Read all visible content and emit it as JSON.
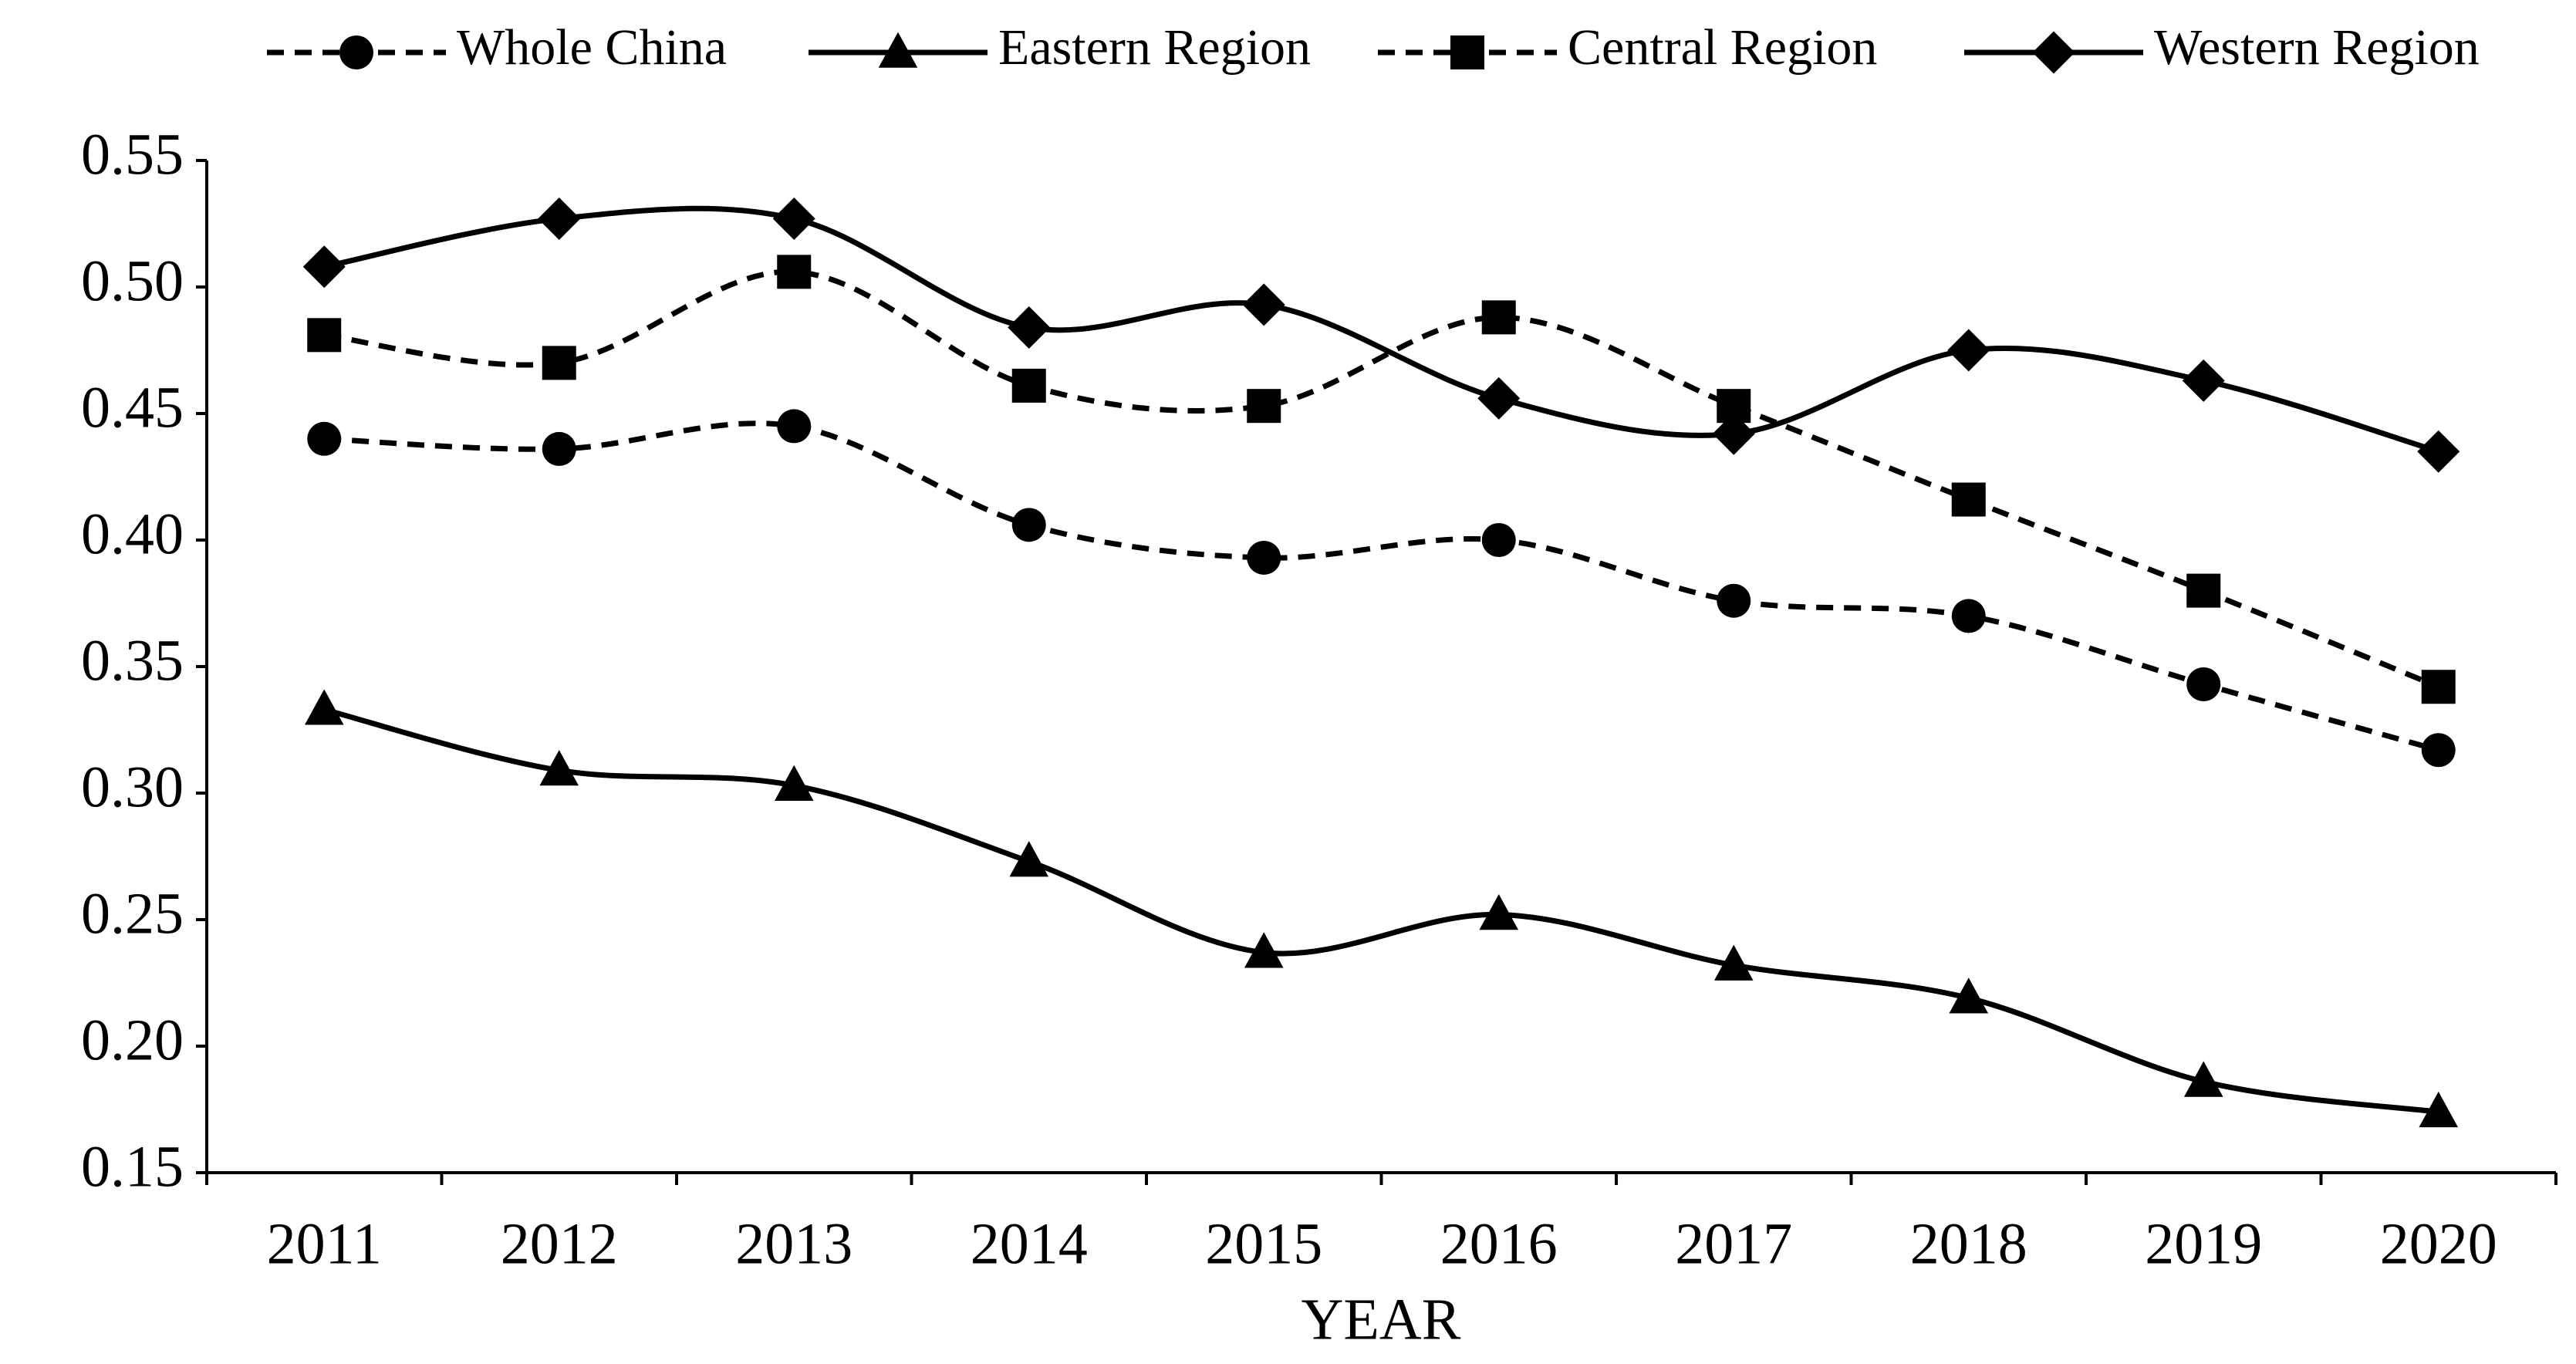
{
  "chart_data": {
    "type": "line",
    "x_label": "YEAR",
    "categories": [
      "2011",
      "2012",
      "2013",
      "2014",
      "2015",
      "2016",
      "2017",
      "2018",
      "2019",
      "2020"
    ],
    "series": [
      {
        "name": "Whole China",
        "color": "#000000",
        "line_style": "dashed",
        "marker": "circle",
        "values": [
          0.44,
          0.436,
          0.445,
          0.406,
          0.393,
          0.4,
          0.376,
          0.37,
          0.343,
          0.317
        ]
      },
      {
        "name": "Eastern Region",
        "color": "#000000",
        "line_style": "solid",
        "marker": "triangle",
        "values": [
          0.333,
          0.309,
          0.303,
          0.273,
          0.237,
          0.252,
          0.232,
          0.219,
          0.186,
          0.174
        ]
      },
      {
        "name": "Central Region",
        "color": "#000000",
        "line_style": "dashed",
        "marker": "square",
        "values": [
          0.481,
          0.47,
          0.506,
          0.461,
          0.453,
          0.488,
          0.453,
          0.416,
          0.38,
          0.342
        ]
      },
      {
        "name": "Western Region",
        "color": "#000000",
        "line_style": "solid",
        "marker": "diamond",
        "values": [
          0.508,
          0.527,
          0.527,
          0.484,
          0.493,
          0.456,
          0.442,
          0.475,
          0.463,
          0.435
        ]
      }
    ],
    "ylim": [
      0.15,
      0.55
    ],
    "yticks": [
      {
        "value": 0.15,
        "label": "0.15"
      },
      {
        "value": 0.2,
        "label": "0.20"
      },
      {
        "value": 0.25,
        "label": "0.25"
      },
      {
        "value": 0.3,
        "label": "0.30"
      },
      {
        "value": 0.35,
        "label": "0.35"
      },
      {
        "value": 0.4,
        "label": "0.40"
      },
      {
        "value": 0.45,
        "label": "0.45"
      },
      {
        "value": 0.5,
        "label": "0.50"
      },
      {
        "value": 0.55,
        "label": "0.55"
      }
    ],
    "grid": false,
    "legend": "top",
    "smooth": true
  }
}
